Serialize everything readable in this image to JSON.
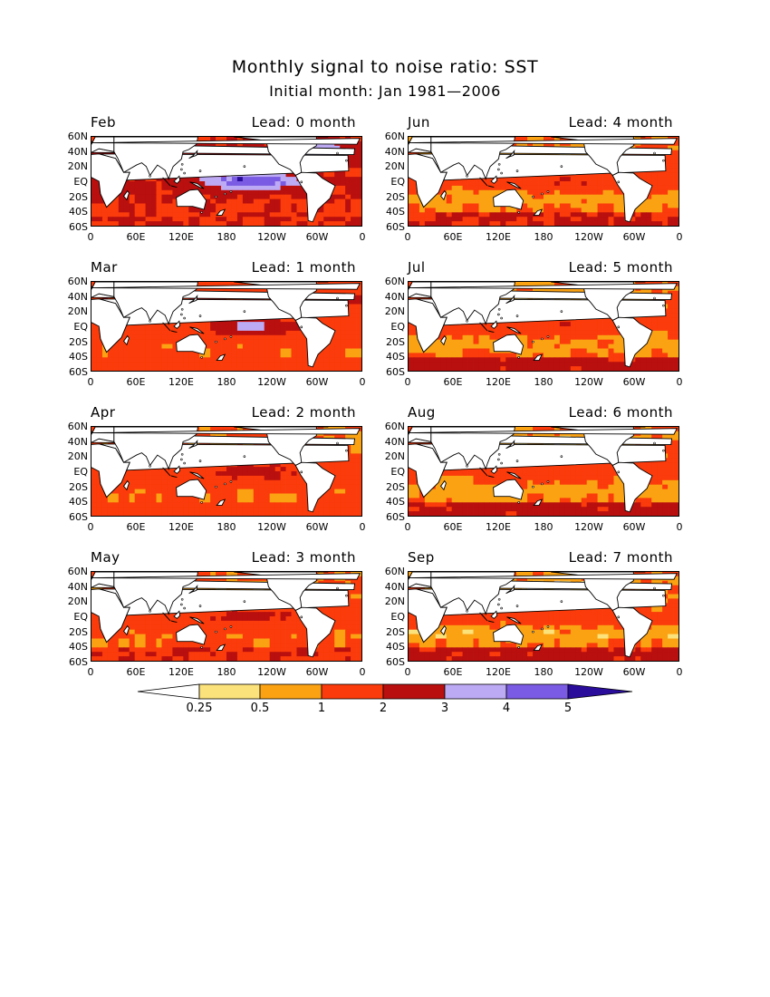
{
  "title": "Monthly signal to noise ratio: SST",
  "subtitle": "Initial month: Jan 1981—2006",
  "lat_ticks": [
    "60N",
    "40N",
    "20N",
    "EQ",
    "20S",
    "40S",
    "60S"
  ],
  "lon_ticks": [
    "0",
    "60E",
    "120E",
    "180",
    "120W",
    "60W",
    "0"
  ],
  "palette": {
    "lt025": "#ffffff",
    "b025_05": "#fce27a",
    "b05_1": "#fba213",
    "b1_2": "#fb3b0b",
    "b2_3": "#b90f0f",
    "b3_4": "#bdaaf4",
    "b4_5": "#7a5be3",
    "gt5": "#2a0d9a",
    "land": "#ffffff"
  },
  "colorbar": {
    "labels": [
      "0.25",
      "0.5",
      "1",
      "2",
      "3",
      "4",
      "5"
    ]
  },
  "panels": [
    {
      "month": "Feb",
      "lead": "Lead: 0 month",
      "lead_months": 0
    },
    {
      "month": "Jun",
      "lead": "Lead: 4 month",
      "lead_months": 4
    },
    {
      "month": "Mar",
      "lead": "Lead: 1 month",
      "lead_months": 1
    },
    {
      "month": "Jul",
      "lead": "Lead: 5 month",
      "lead_months": 5
    },
    {
      "month": "Apr",
      "lead": "Lead: 2 month",
      "lead_months": 2
    },
    {
      "month": "Aug",
      "lead": "Lead: 6 month",
      "lead_months": 6
    },
    {
      "month": "May",
      "lead": "Lead: 3 month",
      "lead_months": 3
    },
    {
      "month": "Sep",
      "lead": "Lead: 7 month",
      "lead_months": 7
    }
  ]
}
